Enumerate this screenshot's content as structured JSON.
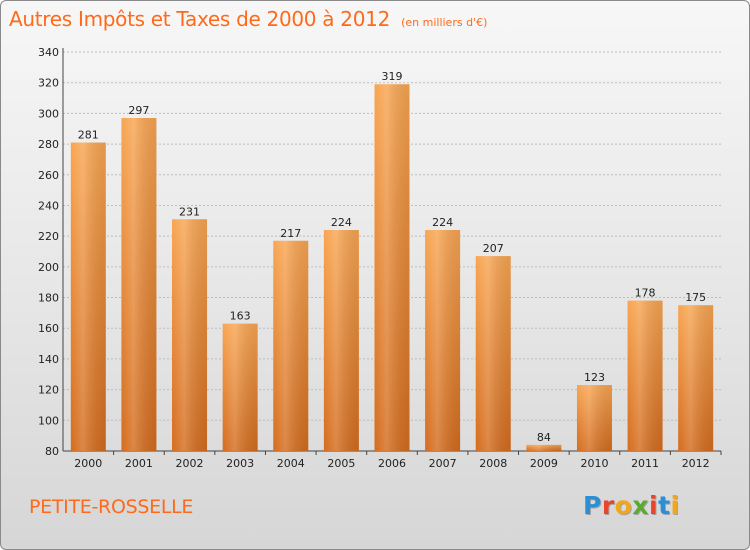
{
  "header": {
    "title": "Autres Impôts et Taxes de 2000 à 2012",
    "subtitle": "(en milliers d'€)"
  },
  "footer": {
    "place": "PETITE-ROSSELLE",
    "logo_letters": [
      "P",
      "r",
      "o",
      "x",
      "i",
      "t",
      "i"
    ],
    "logo_colors": [
      "#2b8fd6",
      "#e8452c",
      "#f2a71b",
      "#5aab2e",
      "#e8452c",
      "#2b8fd6",
      "#f2a71b"
    ]
  },
  "colors": {
    "bar_light": "#f8a552",
    "bar_dark": "#d46c1e",
    "accent": "#ff6a1a",
    "grid": "#bdbdbd"
  },
  "chart_data": {
    "type": "bar",
    "title": "Autres Impôts et Taxes de 2000 à 2012",
    "subtitle": "(en milliers d'€)",
    "xlabel": "",
    "ylabel": "",
    "categories": [
      "2000",
      "2001",
      "2002",
      "2003",
      "2004",
      "2005",
      "2006",
      "2007",
      "2008",
      "2009",
      "2010",
      "2011",
      "2012"
    ],
    "values": [
      281,
      297,
      231,
      163,
      217,
      224,
      319,
      224,
      207,
      84,
      123,
      178,
      175
    ],
    "ylim": [
      80,
      340
    ],
    "yticks": [
      80,
      100,
      120,
      140,
      160,
      180,
      200,
      220,
      240,
      260,
      280,
      300,
      320,
      340
    ],
    "grid": true,
    "legend": "none"
  }
}
